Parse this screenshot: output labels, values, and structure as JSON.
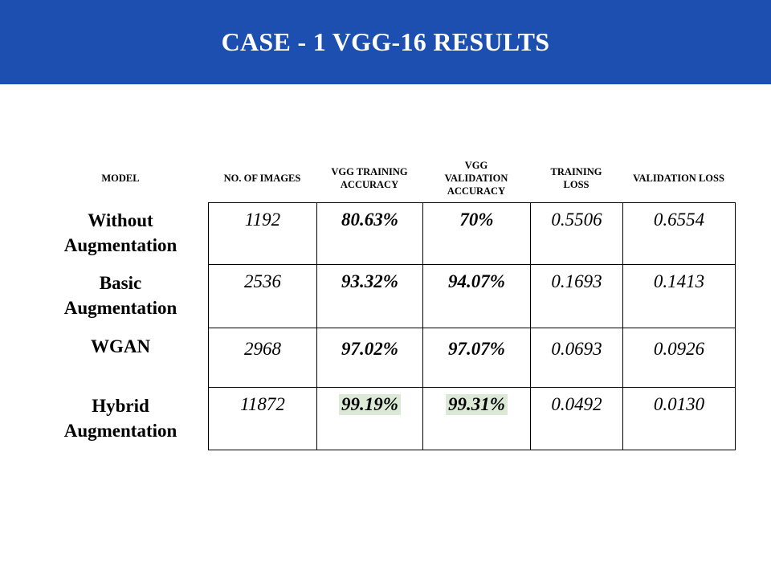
{
  "slide": {
    "title": "CASE - 1 VGG-16 RESULTS"
  },
  "table": {
    "headers": {
      "model": [
        "MODEL"
      ],
      "images": [
        "NO. OF IMAGES"
      ],
      "train_acc": [
        "VGG TRAINING",
        "ACCURACY"
      ],
      "val_acc": [
        "VGG",
        "VALIDATION",
        "ACCURACY"
      ],
      "train_loss": [
        "TRAINING",
        "LOSS"
      ],
      "val_loss": [
        "VALIDATION LOSS"
      ]
    },
    "rows": [
      {
        "model": [
          "Without",
          "Augmentation"
        ],
        "images": "1192",
        "train_acc": "80.63%",
        "val_acc": "70%",
        "train_loss": "0.5506",
        "val_loss": "0.6554"
      },
      {
        "model": [
          "Basic",
          "Augmentation"
        ],
        "images": "2536",
        "train_acc": "93.32%",
        "val_acc": "94.07%",
        "train_loss": "0.1693",
        "val_loss": "0.1413"
      },
      {
        "model": [
          "WGAN"
        ],
        "images": "2968",
        "train_acc": "97.02%",
        "val_acc": "97.07%",
        "train_loss": "0.0693",
        "val_loss": "0.0926"
      },
      {
        "model": [
          "Hybrid",
          "Augmentation"
        ],
        "images": "11872",
        "train_acc": "99.19%",
        "val_acc": "99.31%",
        "train_loss": "0.0492",
        "val_loss": "0.0130"
      }
    ],
    "highlight_color": "#dbe9d6"
  },
  "colors": {
    "title_bar": "#1d4fb0",
    "title_text": "#ffffff"
  }
}
